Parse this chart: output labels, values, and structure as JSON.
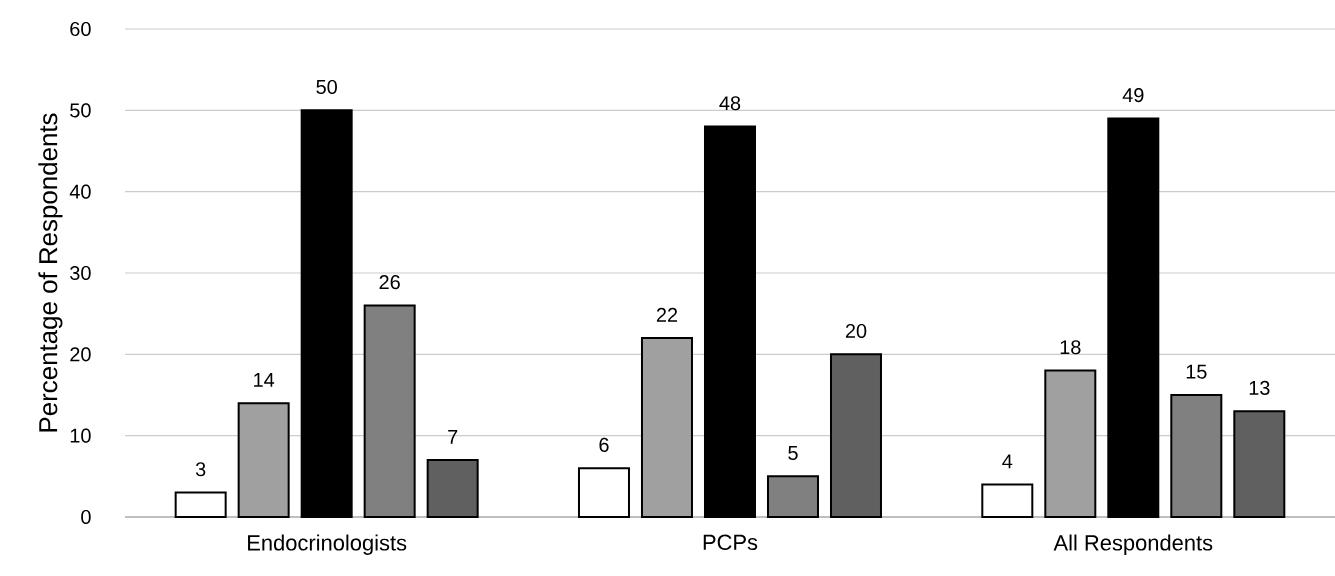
{
  "chart_data": {
    "type": "bar",
    "ylabel": "Percentage of Respondents",
    "categories": [
      "Endocrinologists",
      "PCPs",
      "All Respondents"
    ],
    "series": [
      {
        "color": "#ffffff",
        "values": [
          3,
          6,
          4
        ]
      },
      {
        "color": "#a0a0a0",
        "values": [
          14,
          22,
          18
        ]
      },
      {
        "color": "#000000",
        "values": [
          50,
          48,
          49
        ]
      },
      {
        "color": "#808080",
        "values": [
          26,
          5,
          15
        ]
      },
      {
        "color": "#606060",
        "values": [
          7,
          20,
          13
        ]
      }
    ],
    "ylim": [
      0,
      60
    ],
    "yticks": [
      0,
      10,
      20,
      30,
      40,
      50,
      60
    ],
    "grid": "y",
    "data_labels": true
  }
}
